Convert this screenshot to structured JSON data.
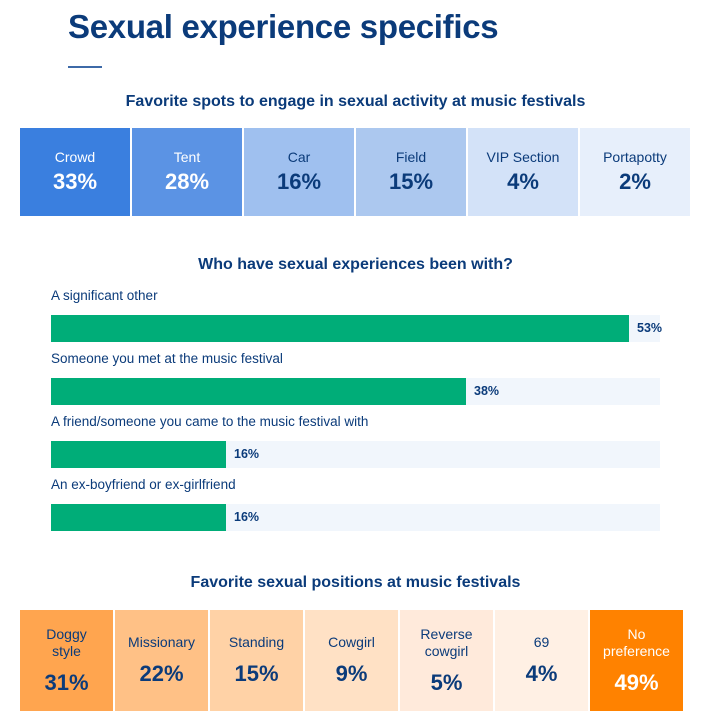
{
  "page_title": "Sexual experience specifics",
  "chart_data": [
    {
      "type": "table",
      "title": "Favorite spots to engage in sexual activity at music festivals",
      "categories": [
        "Crowd",
        "Tent",
        "Car",
        "Field",
        "VIP Section",
        "Portapotty"
      ],
      "values": [
        33,
        28,
        16,
        15,
        4,
        2
      ],
      "value_labels": [
        "33%",
        "28%",
        "16%",
        "15%",
        "4%",
        "2%"
      ],
      "colors": [
        "#3a7fdf",
        "#5b93e4",
        "#9fc0ef",
        "#acc8ef",
        "#d3e2f8",
        "#e7effb"
      ],
      "text_colors": [
        "#ffffff",
        "#ffffff",
        "#0b3b7a",
        "#0b3b7a",
        "#0b3b7a",
        "#0b3b7a"
      ]
    },
    {
      "type": "bar",
      "orientation": "horizontal",
      "title": "Who have sexual experiences been with?",
      "categories": [
        "A significant other",
        "Someone you met at the music festival",
        "A friend/someone you came to the music festival with",
        "An ex-boyfriend or ex-girlfriend"
      ],
      "values": [
        53,
        38,
        16,
        16
      ],
      "value_labels": [
        "53%",
        "38%",
        "16%",
        "16%"
      ],
      "xlim": [
        0,
        60
      ],
      "bar_color": "#00ad78",
      "track_color": "#f1f6fc"
    },
    {
      "type": "table",
      "title": "Favorite sexual positions at music festivals",
      "categories": [
        "Doggy style",
        "Missionary",
        "Standing",
        "Cowgirl",
        "Reverse cowgirl",
        "69",
        "No preference"
      ],
      "values": [
        31,
        22,
        15,
        9,
        5,
        4,
        49
      ],
      "value_labels": [
        "31%",
        "22%",
        "15%",
        "9%",
        "5%",
        "4%",
        "49%"
      ],
      "colors": [
        "#ffa54f",
        "#ffc186",
        "#ffd2a6",
        "#ffe1c5",
        "#ffeadb",
        "#fff0e4",
        "#ff8200"
      ],
      "text_colors": [
        "#0b3b7a",
        "#0b3b7a",
        "#0b3b7a",
        "#0b3b7a",
        "#0b3b7a",
        "#0b3b7a",
        "#ffffff"
      ]
    }
  ]
}
